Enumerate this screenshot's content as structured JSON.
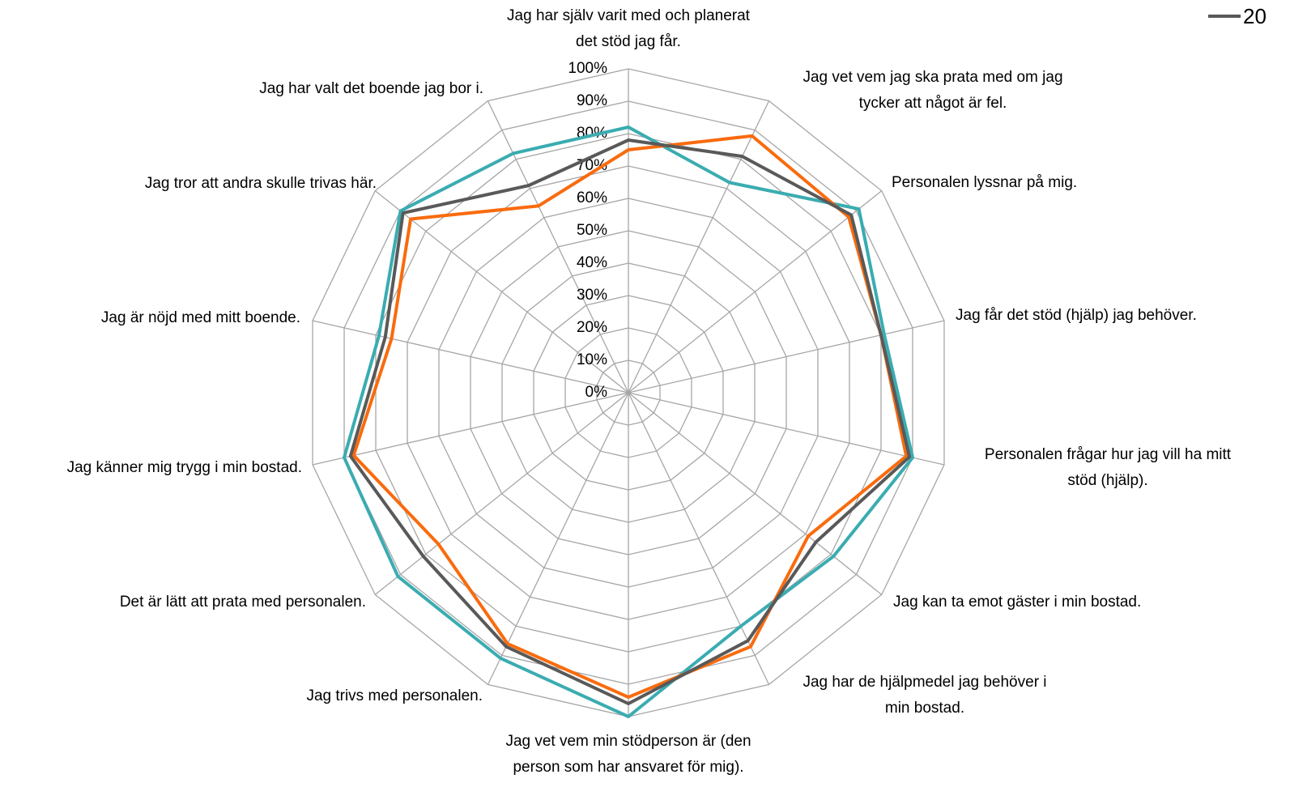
{
  "chart_data": {
    "type": "radar",
    "categories": [
      "Jag har själv varit med och planerat\ndet stöd jag får.",
      "Jag vet vem jag ska prata med om jag\ntycker att något är fel.",
      "Personalen lyssnar på mig.",
      "Jag får det stöd (hjälp) jag behöver.",
      "Personalen frågar hur jag vill ha mitt\nstöd (hjälp).",
      "Jag kan ta emot gäster i min bostad.",
      "Jag har de hjälpmedel jag behöver i\nmin bostad.",
      "Jag vet vem min stödperson är (den\nperson som har ansvaret för mig).",
      "Jag trivs med personalen.",
      "Det är lätt att prata med personalen.",
      "Jag känner mig trygg i min bostad.",
      "Jag är nöjd med mitt boende.",
      "Jag tror att andra skulle trivas här.",
      "Jag har valt det boende jag bor i."
    ],
    "series": [
      {
        "color": "#3aacb1",
        "values": [
          82,
          72,
          91,
          81,
          90,
          81,
          80,
          100,
          91,
          91,
          90,
          79,
          90,
          82
        ]
      },
      {
        "color": "#f96b0e",
        "values": [
          75,
          88,
          87,
          80,
          88,
          71,
          87,
          94,
          86,
          75,
          87,
          75,
          86,
          64
        ]
      },
      {
        "name": "20",
        "color": "#595959",
        "values": [
          78,
          81,
          88,
          80,
          89,
          74,
          85,
          96,
          87,
          81,
          88,
          77,
          89,
          71
        ]
      }
    ],
    "ylim": [
      0,
      100
    ],
    "yticks": [
      {
        "value": 0,
        "label": "0%"
      },
      {
        "value": 10,
        "label": "10%"
      },
      {
        "value": 20,
        "label": "20%"
      },
      {
        "value": 30,
        "label": "30%"
      },
      {
        "value": 40,
        "label": "40%"
      },
      {
        "value": 50,
        "label": "50%"
      },
      {
        "value": 60,
        "label": "60%"
      },
      {
        "value": 70,
        "label": "70%"
      },
      {
        "value": 80,
        "label": "80%"
      },
      {
        "value": 90,
        "label": "90%"
      },
      {
        "value": 100,
        "label": "100%"
      }
    ],
    "grid": true
  }
}
